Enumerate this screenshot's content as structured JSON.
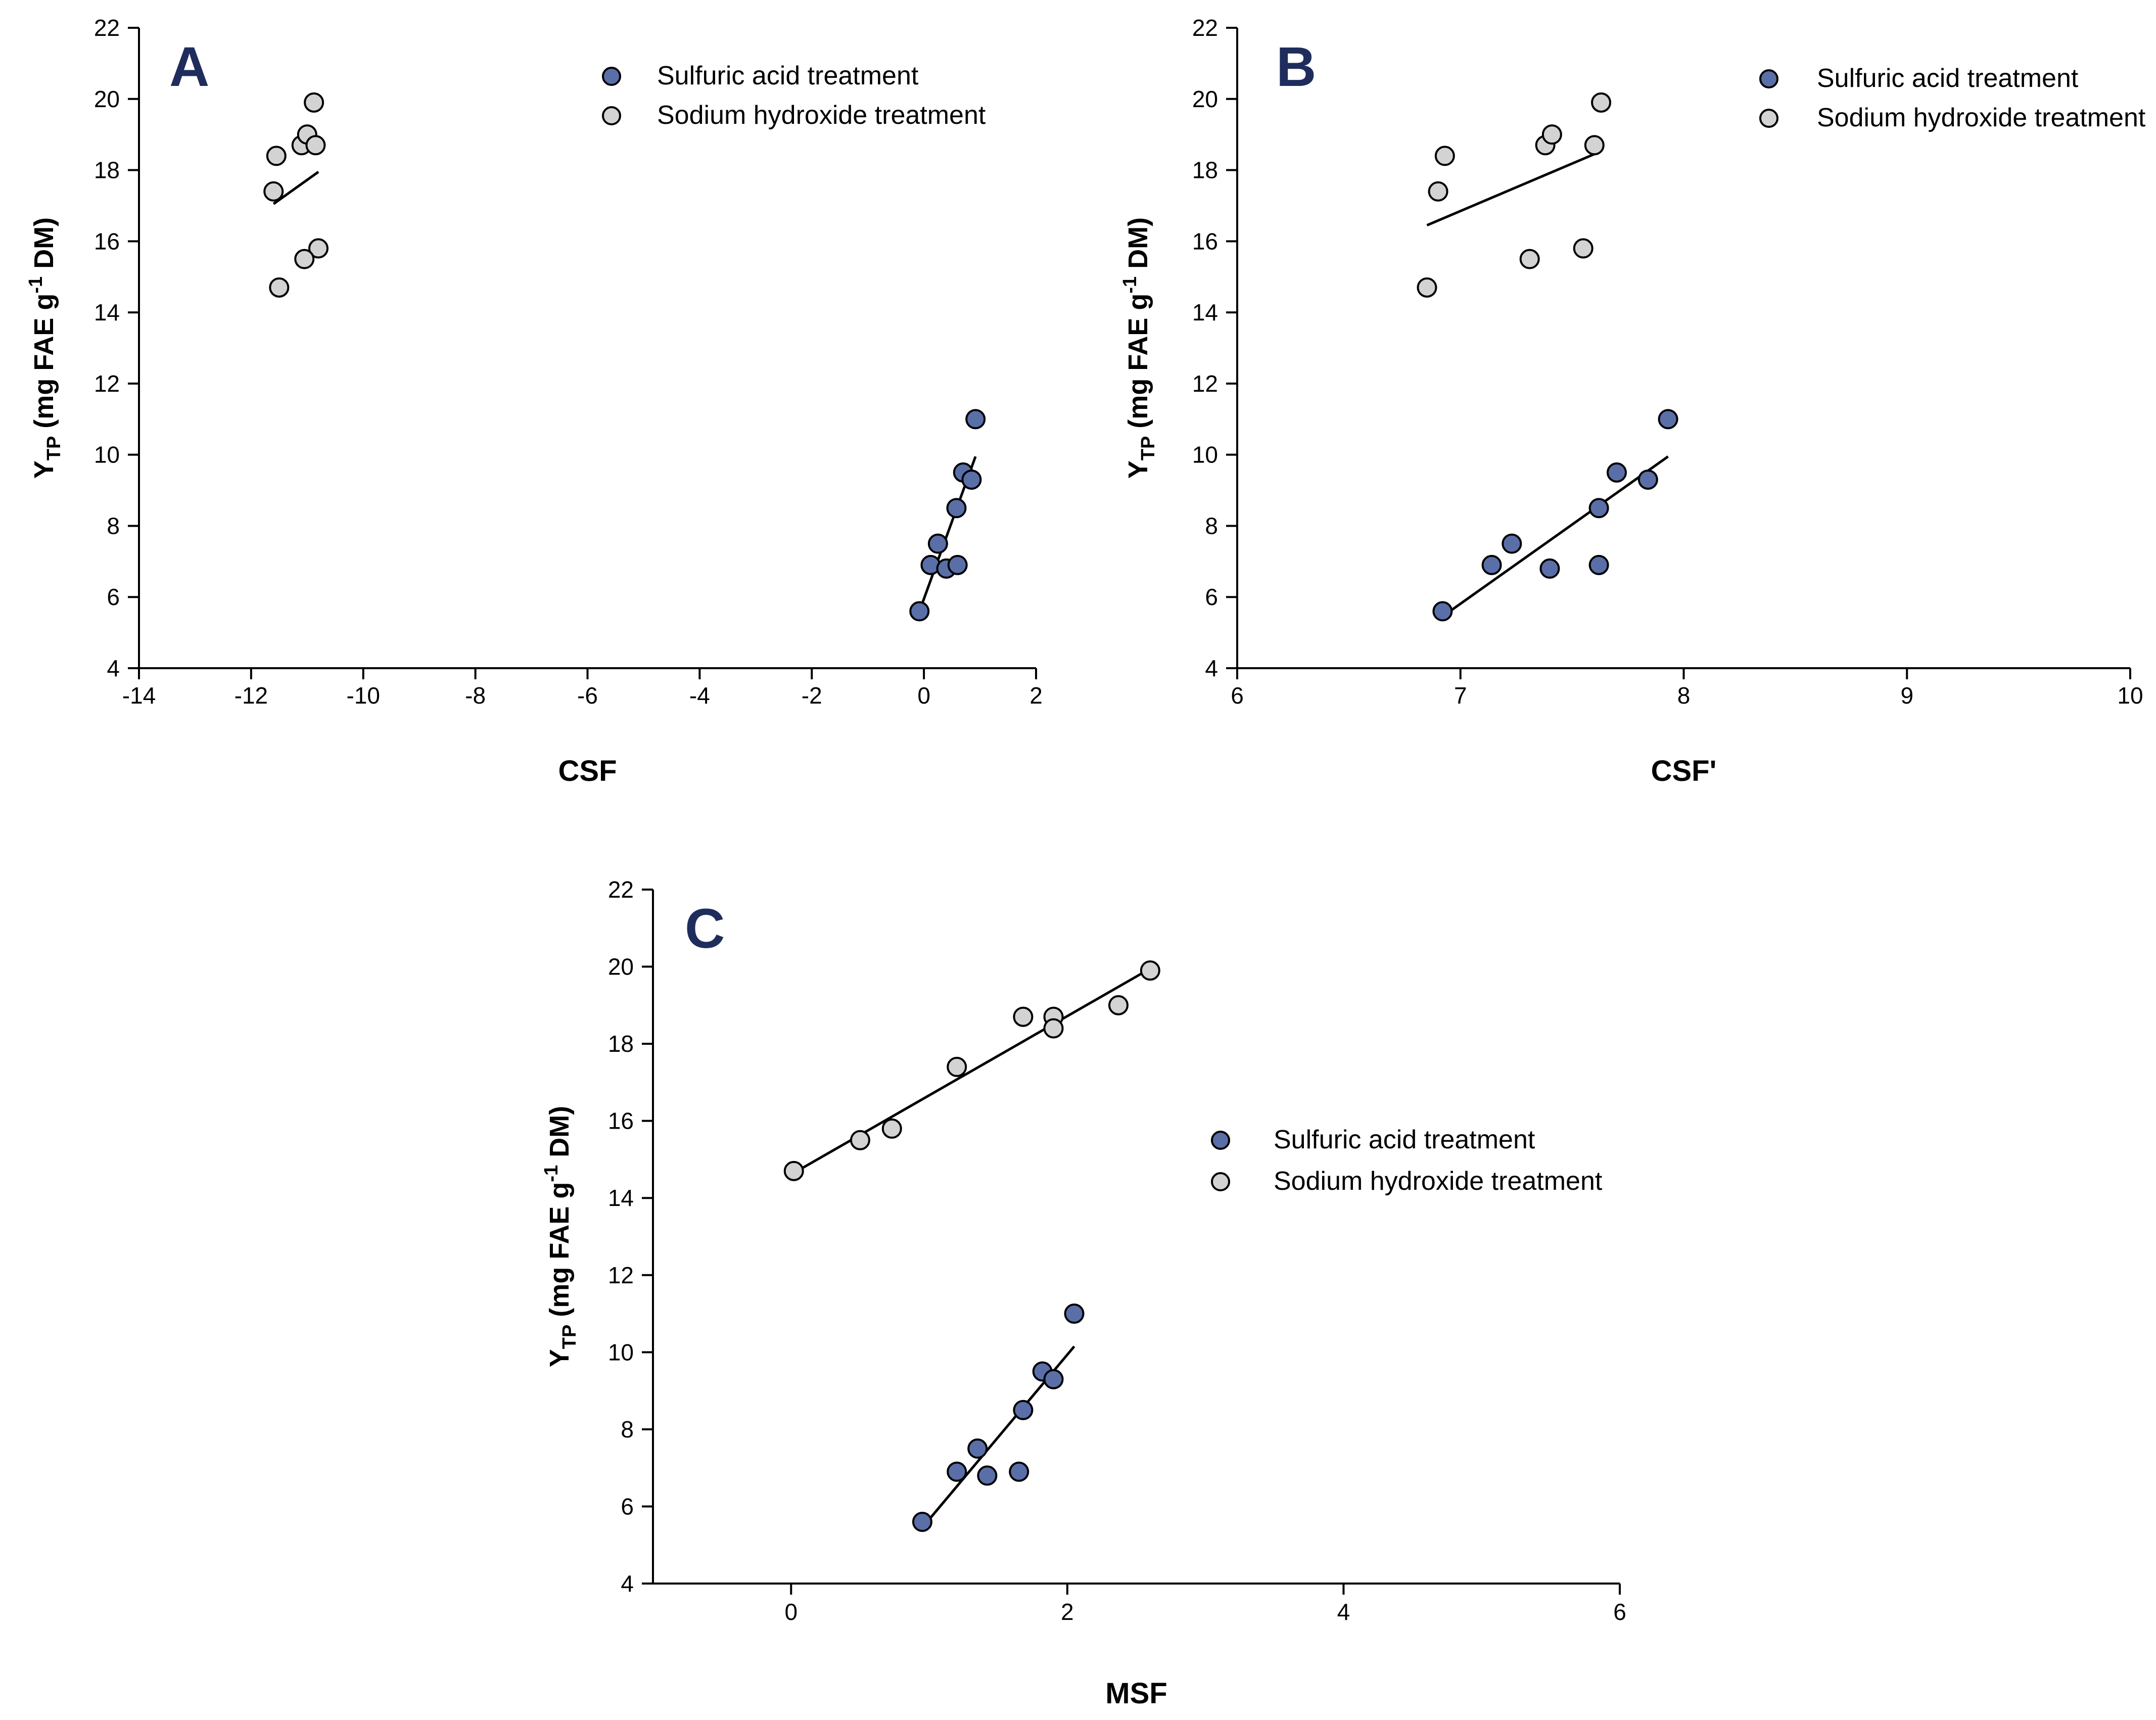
{
  "colors": {
    "acid": "#5a6fa8",
    "base": "#d3d3d3"
  },
  "chart_data": [
    {
      "type": "scatter",
      "panel_label": "A",
      "xlabel": "CSF",
      "ylabel": {
        "main": "Y",
        "sub": "TP",
        "rest1": " (mg FAE g",
        "sup": "-1",
        "rest2": " DM)"
      },
      "xlim": [
        -14,
        2
      ],
      "ylim": [
        4,
        22
      ],
      "xticks": [
        -14,
        -12,
        -10,
        -8,
        -6,
        -4,
        -2,
        0,
        2
      ],
      "yticks": [
        4,
        6,
        8,
        10,
        12,
        14,
        16,
        18,
        20,
        22
      ],
      "legend": [
        "Sulfuric acid treatment",
        "Sodium hydroxide treatment"
      ],
      "series": [
        {
          "name": "Sulfuric acid treatment",
          "color_key": "acid",
          "x": [
            -0.08,
            0.12,
            0.25,
            0.4,
            0.6,
            0.58,
            0.7,
            0.85,
            0.92
          ],
          "y": [
            5.6,
            6.9,
            7.5,
            6.8,
            6.9,
            8.5,
            9.5,
            9.3,
            11.0
          ],
          "fit": [
            [
              -0.08,
              5.6
            ],
            [
              0.92,
              9.95
            ]
          ]
        },
        {
          "name": "Sodium hydroxide treatment",
          "color_key": "base",
          "x": [
            -11.55,
            -11.6,
            -11.1,
            -11.0,
            -10.88,
            -10.85,
            -10.8,
            -11.5,
            -11.05
          ],
          "y": [
            18.4,
            17.4,
            18.7,
            19.0,
            19.9,
            18.7,
            15.8,
            14.7,
            15.5
          ],
          "fit": [
            [
              -11.6,
              17.05
            ],
            [
              -10.8,
              17.95
            ]
          ]
        }
      ]
    },
    {
      "type": "scatter",
      "panel_label": "B",
      "xlabel": "CSF'",
      "ylabel": {
        "main": "Y",
        "sub": "TP",
        "rest1": " (mg FAE g",
        "sup": "-1",
        "rest2": " DM)"
      },
      "xlim": [
        6,
        10
      ],
      "ylim": [
        4,
        22
      ],
      "xticks": [
        6,
        7,
        8,
        9,
        10
      ],
      "yticks": [
        4,
        6,
        8,
        10,
        12,
        14,
        16,
        18,
        20,
        22
      ],
      "legend": [
        "Sulfuric acid treatment",
        "Sodium hydroxide treatment"
      ],
      "series": [
        {
          "name": "Sulfuric acid treatment",
          "color_key": "acid",
          "x": [
            6.92,
            7.14,
            7.23,
            7.4,
            7.62,
            7.62,
            7.7,
            7.84,
            7.93
          ],
          "y": [
            5.6,
            6.9,
            7.5,
            6.8,
            6.9,
            8.5,
            9.5,
            9.3,
            11.0
          ],
          "fit": [
            [
              6.93,
              5.5
            ],
            [
              7.93,
              9.95
            ]
          ]
        },
        {
          "name": "Sodium hydroxide treatment",
          "color_key": "base",
          "x": [
            6.85,
            6.9,
            6.93,
            7.31,
            7.38,
            7.41,
            7.55,
            7.6,
            7.63
          ],
          "y": [
            14.7,
            17.4,
            18.4,
            15.5,
            18.7,
            19.0,
            15.8,
            18.7,
            19.9
          ],
          "fit": [
            [
              6.85,
              16.45
            ],
            [
              7.6,
              18.45
            ]
          ]
        }
      ]
    },
    {
      "type": "scatter",
      "panel_label": "C",
      "xlabel": "MSF",
      "ylabel": {
        "main": "Y",
        "sub": "TP",
        "rest1": " (mg FAE g",
        "sup": "-1",
        "rest2": " DM)"
      },
      "xlim": [
        -1,
        6
      ],
      "ylim": [
        4,
        22
      ],
      "xticks": [
        0,
        2,
        4,
        6
      ],
      "yticks": [
        4,
        6,
        8,
        10,
        12,
        14,
        16,
        18,
        20,
        22
      ],
      "legend": [
        "Sulfuric acid treatment",
        "Sodium hydroxide treatment"
      ],
      "series": [
        {
          "name": "Sulfuric acid treatment",
          "color_key": "acid",
          "x": [
            0.95,
            1.2,
            1.35,
            1.42,
            1.65,
            1.68,
            1.82,
            1.9,
            2.05
          ],
          "y": [
            5.6,
            6.9,
            7.5,
            6.8,
            6.9,
            8.5,
            9.5,
            9.3,
            11.0
          ],
          "fit": [
            [
              0.95,
              5.45
            ],
            [
              2.05,
              10.15
            ]
          ]
        },
        {
          "name": "Sodium hydroxide treatment",
          "color_key": "base",
          "x": [
            0.02,
            0.5,
            0.73,
            1.2,
            1.68,
            1.9,
            1.9,
            2.37,
            2.6
          ],
          "y": [
            14.7,
            15.5,
            15.8,
            17.4,
            18.7,
            18.7,
            18.4,
            19.0,
            19.9
          ],
          "fit": [
            [
              0.02,
              14.65
            ],
            [
              2.6,
              19.95
            ]
          ]
        }
      ]
    }
  ]
}
